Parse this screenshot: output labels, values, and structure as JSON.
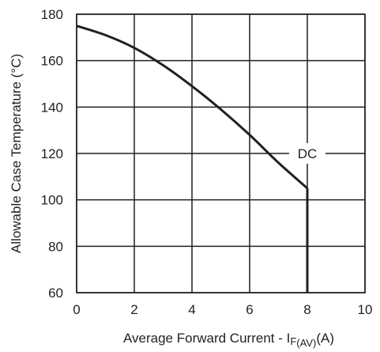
{
  "chart_data": {
    "type": "line",
    "xlabel_main": "Average Forward Current - I",
    "xlabel_sub1": "F",
    "xlabel_sub2": "(AV)",
    "xlabel_unit": "(A)",
    "ylabel": "Allowable Case Temperature (°C)",
    "xlim": [
      0,
      10
    ],
    "ylim": [
      60,
      180
    ],
    "x_ticks": [
      0,
      2,
      4,
      6,
      8,
      10
    ],
    "y_ticks": [
      60,
      80,
      100,
      120,
      140,
      160,
      180
    ],
    "grid": true,
    "annotation": "DC",
    "series": [
      {
        "name": "",
        "x": [
          0,
          1,
          2,
          3,
          4,
          5,
          6,
          7,
          8
        ],
        "y": [
          175,
          171,
          165.5,
          158,
          149,
          139,
          128,
          116,
          105
        ]
      }
    ],
    "drop_line": {
      "x": 8,
      "y_top": 105,
      "y_bottom": 60
    }
  }
}
